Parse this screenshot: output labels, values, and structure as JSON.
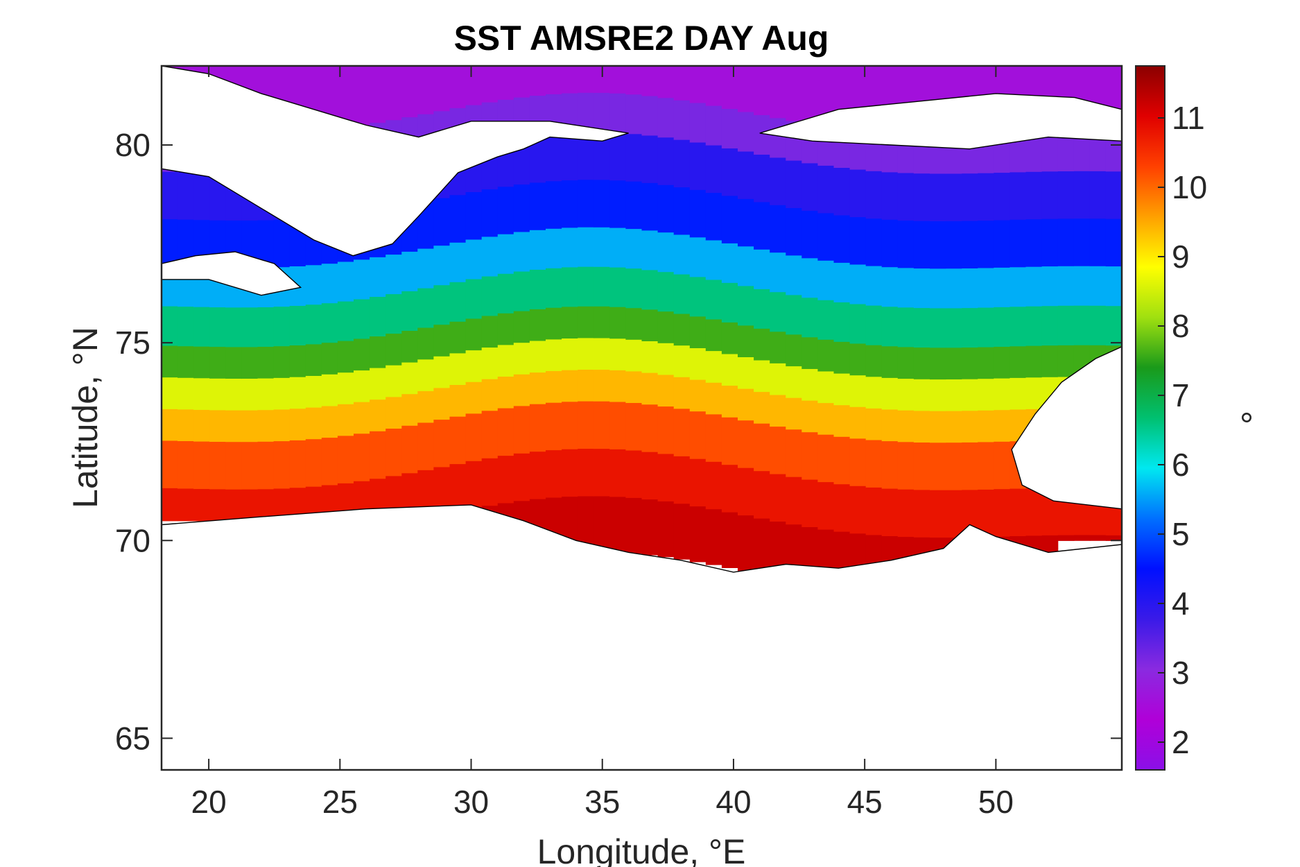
{
  "chart_data": {
    "type": "heatmap",
    "title": "SST AMSRE2 DAY Aug",
    "xlabel": "Longitude, °E",
    "ylabel": "Latitude, °N",
    "colorbar_label": "°",
    "xlim": [
      18.2,
      54.8
    ],
    "ylim": [
      64.2,
      82.0
    ],
    "xticks": [
      20,
      25,
      30,
      35,
      40,
      45,
      50
    ],
    "yticks": [
      65,
      70,
      75,
      80
    ],
    "color_limits": [
      1.6,
      11.75
    ],
    "colorbar_ticks": [
      2,
      3,
      4,
      5,
      6,
      7,
      8,
      9,
      10,
      11
    ],
    "colormap": [
      "#8b10e8",
      "#b000d8",
      "#8a2ae0",
      "#3a1ae8",
      "#0010ff",
      "#0070ff",
      "#00e8f0",
      "#00c070",
      "#1a9a1a",
      "#a0e010",
      "#ffff00",
      "#ffa000",
      "#ff4000",
      "#e00000",
      "#8b0000"
    ],
    "temperature_bands": [
      {
        "lat_north": 82.0,
        "lat_south": 80.6,
        "sst": 2.6
      },
      {
        "lat_north": 80.6,
        "lat_south": 79.6,
        "sst": 3.2
      },
      {
        "lat_north": 79.6,
        "lat_south": 78.4,
        "sst": 4.0
      },
      {
        "lat_north": 78.4,
        "lat_south": 77.2,
        "sst": 4.6
      },
      {
        "lat_north": 77.2,
        "lat_south": 76.2,
        "sst": 5.6
      },
      {
        "lat_north": 76.2,
        "lat_south": 75.2,
        "sst": 6.6
      },
      {
        "lat_north": 75.2,
        "lat_south": 74.4,
        "sst": 7.6
      },
      {
        "lat_north": 74.4,
        "lat_south": 73.6,
        "sst": 8.6
      },
      {
        "lat_north": 73.6,
        "lat_south": 72.8,
        "sst": 9.4
      },
      {
        "lat_north": 72.8,
        "lat_south": 71.6,
        "sst": 10.2
      },
      {
        "lat_north": 71.6,
        "lat_south": 70.4,
        "sst": 10.8
      },
      {
        "lat_north": 70.4,
        "lat_south": 69.0,
        "sst": 11.2
      }
    ]
  }
}
